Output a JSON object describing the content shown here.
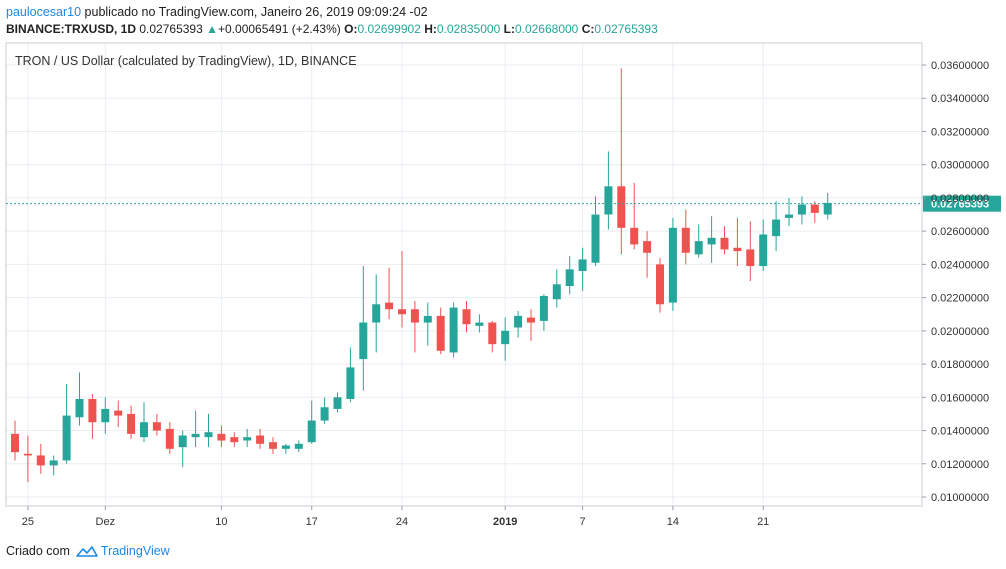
{
  "header": {
    "username": "paulocesar10",
    "published_text": "publicado no TradingView.com, Janeiro 26, 2019 09:09:24 -02",
    "symbol": "BINANCE:TRXUSD, 1D",
    "last_price": "0.02765393",
    "change_arrow": "▲",
    "change": "+0.00065491 (+2.43%)",
    "open_label": "O:",
    "open": "0.02699902",
    "high_label": "H:",
    "high": "0.02835000",
    "low_label": "L:",
    "low": "0.02668000",
    "close_label": "C:",
    "close": "0.02765393"
  },
  "footer": {
    "created_with": "Criado com",
    "brand": "TradingView"
  },
  "colors": {
    "up": "#26a69a",
    "down": "#ef5350",
    "grid": "#e9eef3",
    "price_line": "#26a69a",
    "price_label_bg": "#26a69a"
  },
  "chart_data": {
    "type": "candlestick",
    "title": "TRON / US Dollar (calculated by TradingView), 1D, BINANCE",
    "y_ticks": [
      "0.03600000",
      "0.03400000",
      "0.03200000",
      "0.03000000",
      "0.02800000",
      "0.02600000",
      "0.02400000",
      "0.02200000",
      "0.02000000",
      "0.01800000",
      "0.01600000",
      "0.01400000",
      "0.01200000",
      "0.01000000"
    ],
    "ylim": [
      0.0094,
      0.037
    ],
    "x_ticks": [
      {
        "label": "25",
        "index": 1,
        "bold": false
      },
      {
        "label": "Dez",
        "index": 7,
        "bold": false
      },
      {
        "label": "10",
        "index": 16,
        "bold": false
      },
      {
        "label": "17",
        "index": 23,
        "bold": false
      },
      {
        "label": "24",
        "index": 30,
        "bold": false
      },
      {
        "label": "2019",
        "index": 38,
        "bold": true
      },
      {
        "label": "7",
        "index": 44,
        "bold": false
      },
      {
        "label": "14",
        "index": 51,
        "bold": false
      },
      {
        "label": "21",
        "index": 58,
        "bold": false
      }
    ],
    "current_price": 0.02765393,
    "current_price_label": "0.02765393",
    "candles": [
      {
        "o": 0.0138,
        "h": 0.0146,
        "l": 0.0122,
        "c": 0.0127
      },
      {
        "o": 0.0126,
        "h": 0.0137,
        "l": 0.0109,
        "c": 0.0125
      },
      {
        "o": 0.0125,
        "h": 0.0132,
        "l": 0.0114,
        "c": 0.0119
      },
      {
        "o": 0.0119,
        "h": 0.0125,
        "l": 0.0113,
        "c": 0.0122
      },
      {
        "o": 0.0122,
        "h": 0.0168,
        "l": 0.012,
        "c": 0.0149
      },
      {
        "o": 0.0148,
        "h": 0.0175,
        "l": 0.0143,
        "c": 0.0159
      },
      {
        "o": 0.0159,
        "h": 0.0162,
        "l": 0.0135,
        "c": 0.0145
      },
      {
        "o": 0.0145,
        "h": 0.016,
        "l": 0.0138,
        "c": 0.0153
      },
      {
        "o": 0.0152,
        "h": 0.0158,
        "l": 0.0142,
        "c": 0.0149
      },
      {
        "o": 0.015,
        "h": 0.0155,
        "l": 0.0135,
        "c": 0.0138
      },
      {
        "o": 0.0136,
        "h": 0.0157,
        "l": 0.0133,
        "c": 0.0145
      },
      {
        "o": 0.0145,
        "h": 0.015,
        "l": 0.0137,
        "c": 0.014
      },
      {
        "o": 0.0141,
        "h": 0.0145,
        "l": 0.0126,
        "c": 0.0129
      },
      {
        "o": 0.013,
        "h": 0.014,
        "l": 0.0118,
        "c": 0.0137
      },
      {
        "o": 0.0136,
        "h": 0.0152,
        "l": 0.013,
        "c": 0.0138
      },
      {
        "o": 0.0136,
        "h": 0.015,
        "l": 0.013,
        "c": 0.0139
      },
      {
        "o": 0.0138,
        "h": 0.0143,
        "l": 0.013,
        "c": 0.0134
      },
      {
        "o": 0.0136,
        "h": 0.0139,
        "l": 0.013,
        "c": 0.0133
      },
      {
        "o": 0.0134,
        "h": 0.0141,
        "l": 0.013,
        "c": 0.0136
      },
      {
        "o": 0.0137,
        "h": 0.0141,
        "l": 0.0129,
        "c": 0.0132
      },
      {
        "o": 0.0133,
        "h": 0.0136,
        "l": 0.0126,
        "c": 0.0129
      },
      {
        "o": 0.0129,
        "h": 0.0132,
        "l": 0.0126,
        "c": 0.0131
      },
      {
        "o": 0.0129,
        "h": 0.0134,
        "l": 0.0127,
        "c": 0.0132
      },
      {
        "o": 0.0133,
        "h": 0.0158,
        "l": 0.0132,
        "c": 0.0146
      },
      {
        "o": 0.0146,
        "h": 0.016,
        "l": 0.0144,
        "c": 0.0154
      },
      {
        "o": 0.0153,
        "h": 0.0163,
        "l": 0.0151,
        "c": 0.016
      },
      {
        "o": 0.0159,
        "h": 0.019,
        "l": 0.0157,
        "c": 0.0178
      },
      {
        "o": 0.0183,
        "h": 0.0239,
        "l": 0.0164,
        "c": 0.0205
      },
      {
        "o": 0.0205,
        "h": 0.0234,
        "l": 0.0187,
        "c": 0.0216
      },
      {
        "o": 0.0217,
        "h": 0.0238,
        "l": 0.0207,
        "c": 0.0213
      },
      {
        "o": 0.0213,
        "h": 0.0248,
        "l": 0.0202,
        "c": 0.021
      },
      {
        "o": 0.0213,
        "h": 0.0218,
        "l": 0.0187,
        "c": 0.0205
      },
      {
        "o": 0.0205,
        "h": 0.0217,
        "l": 0.0191,
        "c": 0.0209
      },
      {
        "o": 0.0209,
        "h": 0.0214,
        "l": 0.0186,
        "c": 0.0188
      },
      {
        "o": 0.0187,
        "h": 0.0217,
        "l": 0.0184,
        "c": 0.0214
      },
      {
        "o": 0.0213,
        "h": 0.0218,
        "l": 0.0199,
        "c": 0.0204
      },
      {
        "o": 0.0203,
        "h": 0.021,
        "l": 0.0199,
        "c": 0.0205
      },
      {
        "o": 0.0205,
        "h": 0.0206,
        "l": 0.0187,
        "c": 0.0192
      },
      {
        "o": 0.0192,
        "h": 0.0208,
        "l": 0.0182,
        "c": 0.02
      },
      {
        "o": 0.0202,
        "h": 0.0212,
        "l": 0.0196,
        "c": 0.0209
      },
      {
        "o": 0.0208,
        "h": 0.0213,
        "l": 0.0194,
        "c": 0.0205
      },
      {
        "o": 0.0206,
        "h": 0.0222,
        "l": 0.02,
        "c": 0.0221
      },
      {
        "o": 0.0219,
        "h": 0.0237,
        "l": 0.0214,
        "c": 0.0228
      },
      {
        "o": 0.0227,
        "h": 0.0245,
        "l": 0.0222,
        "c": 0.0237
      },
      {
        "o": 0.0236,
        "h": 0.025,
        "l": 0.0224,
        "c": 0.0243
      },
      {
        "o": 0.0241,
        "h": 0.0281,
        "l": 0.0239,
        "c": 0.027
      },
      {
        "o": 0.027,
        "h": 0.0308,
        "l": 0.0261,
        "c": 0.0287
      },
      {
        "o": 0.0287,
        "h": 0.0358,
        "l": 0.0246,
        "c": 0.0262
      },
      {
        "o": 0.0262,
        "h": 0.0289,
        "l": 0.0249,
        "c": 0.0252
      },
      {
        "o": 0.0254,
        "h": 0.026,
        "l": 0.0232,
        "c": 0.0247
      },
      {
        "o": 0.024,
        "h": 0.0244,
        "l": 0.0211,
        "c": 0.0216
      },
      {
        "o": 0.0217,
        "h": 0.0268,
        "l": 0.0212,
        "c": 0.0262
      },
      {
        "o": 0.0262,
        "h": 0.0273,
        "l": 0.024,
        "c": 0.0247
      },
      {
        "o": 0.0246,
        "h": 0.0264,
        "l": 0.0244,
        "c": 0.0254
      },
      {
        "o": 0.0252,
        "h": 0.0269,
        "l": 0.0241,
        "c": 0.0256
      },
      {
        "o": 0.0256,
        "h": 0.0263,
        "l": 0.0246,
        "c": 0.0249
      },
      {
        "o": 0.025,
        "h": 0.0268,
        "l": 0.0239,
        "c": 0.0248
      },
      {
        "o": 0.0249,
        "h": 0.0266,
        "l": 0.023,
        "c": 0.0239
      },
      {
        "o": 0.0239,
        "h": 0.0267,
        "l": 0.0236,
        "c": 0.0258
      },
      {
        "o": 0.0257,
        "h": 0.0278,
        "l": 0.0248,
        "c": 0.0267
      },
      {
        "o": 0.0268,
        "h": 0.028,
        "l": 0.0263,
        "c": 0.027
      },
      {
        "o": 0.027,
        "h": 0.0281,
        "l": 0.0264,
        "c": 0.0276
      },
      {
        "o": 0.0276,
        "h": 0.0278,
        "l": 0.0265,
        "c": 0.0271
      },
      {
        "o": 0.027,
        "h": 0.0283,
        "l": 0.0267,
        "c": 0.0277
      }
    ]
  }
}
